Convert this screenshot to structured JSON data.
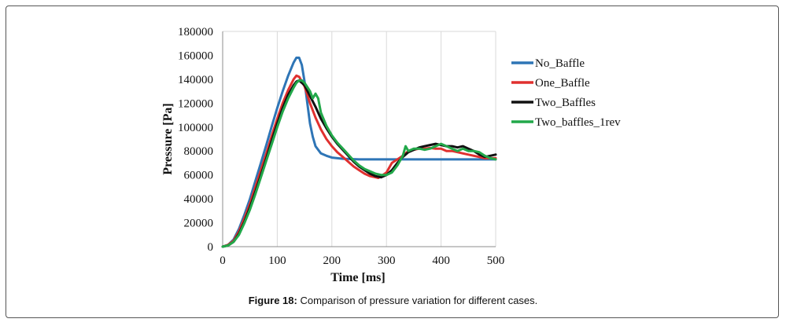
{
  "caption": {
    "label": "Figure 18:",
    "text": "Comparison of pressure variation for different cases."
  },
  "chart_data": {
    "type": "line",
    "title": "",
    "xlabel": "Time [ms]",
    "ylabel": "Pressure [Pa]",
    "xlim": [
      0,
      500
    ],
    "ylim": [
      0,
      180000
    ],
    "xticks": [
      0,
      100,
      200,
      300,
      400,
      500
    ],
    "yticks": [
      0,
      20000,
      40000,
      60000,
      80000,
      100000,
      120000,
      140000,
      160000,
      180000
    ],
    "grid": "vertical",
    "legend_position": "right",
    "series": [
      {
        "name": "No_Baffle",
        "color": "#2e75b6",
        "points": [
          [
            0,
            0
          ],
          [
            10,
            1500
          ],
          [
            20,
            6000
          ],
          [
            30,
            15000
          ],
          [
            40,
            27000
          ],
          [
            50,
            40000
          ],
          [
            60,
            55000
          ],
          [
            70,
            70000
          ],
          [
            80,
            85000
          ],
          [
            90,
            101000
          ],
          [
            100,
            116000
          ],
          [
            110,
            130000
          ],
          [
            120,
            143000
          ],
          [
            130,
            154000
          ],
          [
            135,
            158000
          ],
          [
            140,
            158000
          ],
          [
            145,
            152000
          ],
          [
            150,
            138000
          ],
          [
            155,
            120000
          ],
          [
            160,
            103000
          ],
          [
            165,
            92000
          ],
          [
            170,
            84000
          ],
          [
            180,
            78000
          ],
          [
            190,
            76000
          ],
          [
            200,
            74500
          ],
          [
            220,
            73500
          ],
          [
            250,
            73000
          ],
          [
            300,
            73000
          ],
          [
            350,
            73000
          ],
          [
            400,
            73000
          ],
          [
            450,
            73000
          ],
          [
            500,
            73000
          ]
        ]
      },
      {
        "name": "One_Baffle",
        "color": "#e0302f",
        "points": [
          [
            0,
            0
          ],
          [
            10,
            1500
          ],
          [
            20,
            5000
          ],
          [
            30,
            13000
          ],
          [
            40,
            24000
          ],
          [
            50,
            36000
          ],
          [
            60,
            50000
          ],
          [
            70,
            64000
          ],
          [
            80,
            78000
          ],
          [
            90,
            93000
          ],
          [
            100,
            107000
          ],
          [
            110,
            120000
          ],
          [
            120,
            131000
          ],
          [
            130,
            140000
          ],
          [
            135,
            143000
          ],
          [
            140,
            142000
          ],
          [
            150,
            134000
          ],
          [
            160,
            120000
          ],
          [
            170,
            108000
          ],
          [
            180,
            98000
          ],
          [
            190,
            90000
          ],
          [
            200,
            84000
          ],
          [
            210,
            79000
          ],
          [
            220,
            75000
          ],
          [
            230,
            71000
          ],
          [
            240,
            67000
          ],
          [
            250,
            64000
          ],
          [
            260,
            61000
          ],
          [
            270,
            59000
          ],
          [
            280,
            58000
          ],
          [
            285,
            57500
          ],
          [
            290,
            59000
          ],
          [
            300,
            62000
          ],
          [
            310,
            70000
          ],
          [
            320,
            73000
          ],
          [
            330,
            76000
          ],
          [
            340,
            80000
          ],
          [
            350,
            81000
          ],
          [
            360,
            82000
          ],
          [
            370,
            82000
          ],
          [
            380,
            82500
          ],
          [
            390,
            82000
          ],
          [
            400,
            82000
          ],
          [
            410,
            80000
          ],
          [
            420,
            80000
          ],
          [
            430,
            79000
          ],
          [
            440,
            78000
          ],
          [
            450,
            77000
          ],
          [
            460,
            76000
          ],
          [
            470,
            75000
          ],
          [
            480,
            74000
          ],
          [
            490,
            74000
          ],
          [
            500,
            74000
          ]
        ]
      },
      {
        "name": "Two_Baffles",
        "color": "#111111",
        "points": [
          [
            0,
            0
          ],
          [
            10,
            1000
          ],
          [
            20,
            4000
          ],
          [
            30,
            11000
          ],
          [
            40,
            21000
          ],
          [
            50,
            33000
          ],
          [
            60,
            46000
          ],
          [
            70,
            60000
          ],
          [
            80,
            74000
          ],
          [
            90,
            89000
          ],
          [
            100,
            103000
          ],
          [
            110,
            116000
          ],
          [
            120,
            127000
          ],
          [
            130,
            135000
          ],
          [
            135,
            138000
          ],
          [
            140,
            139000
          ],
          [
            150,
            135000
          ],
          [
            160,
            126000
          ],
          [
            170,
            117000
          ],
          [
            180,
            107000
          ],
          [
            190,
            99000
          ],
          [
            200,
            92000
          ],
          [
            210,
            86000
          ],
          [
            220,
            81000
          ],
          [
            230,
            76000
          ],
          [
            240,
            71000
          ],
          [
            250,
            67000
          ],
          [
            260,
            64000
          ],
          [
            270,
            61000
          ],
          [
            280,
            59000
          ],
          [
            290,
            58000
          ],
          [
            300,
            60000
          ],
          [
            310,
            64000
          ],
          [
            320,
            70000
          ],
          [
            330,
            75000
          ],
          [
            340,
            79000
          ],
          [
            350,
            81000
          ],
          [
            360,
            83000
          ],
          [
            370,
            84000
          ],
          [
            380,
            85000
          ],
          [
            390,
            86000
          ],
          [
            400,
            85000
          ],
          [
            410,
            84000
          ],
          [
            420,
            84000
          ],
          [
            430,
            83000
          ],
          [
            440,
            84000
          ],
          [
            450,
            82000
          ],
          [
            460,
            80000
          ],
          [
            470,
            77000
          ],
          [
            480,
            75000
          ],
          [
            490,
            76000
          ],
          [
            500,
            77000
          ]
        ]
      },
      {
        "name": "Two_baffles_1rev",
        "color": "#22a84a",
        "points": [
          [
            0,
            0
          ],
          [
            10,
            1000
          ],
          [
            20,
            4000
          ],
          [
            30,
            10000
          ],
          [
            40,
            20000
          ],
          [
            50,
            31000
          ],
          [
            60,
            44000
          ],
          [
            70,
            58000
          ],
          [
            80,
            72000
          ],
          [
            90,
            86000
          ],
          [
            100,
            100000
          ],
          [
            110,
            113000
          ],
          [
            120,
            124000
          ],
          [
            130,
            133000
          ],
          [
            135,
            137000
          ],
          [
            140,
            139000
          ],
          [
            145,
            139000
          ],
          [
            150,
            137000
          ],
          [
            160,
            130000
          ],
          [
            165,
            124000
          ],
          [
            170,
            128000
          ],
          [
            175,
            124000
          ],
          [
            180,
            112000
          ],
          [
            190,
            101000
          ],
          [
            200,
            93000
          ],
          [
            210,
            87000
          ],
          [
            220,
            82000
          ],
          [
            230,
            77000
          ],
          [
            240,
            72000
          ],
          [
            250,
            68000
          ],
          [
            260,
            65000
          ],
          [
            270,
            63000
          ],
          [
            280,
            61000
          ],
          [
            290,
            60000
          ],
          [
            300,
            60000
          ],
          [
            310,
            62000
          ],
          [
            320,
            68000
          ],
          [
            330,
            76000
          ],
          [
            335,
            84000
          ],
          [
            340,
            80000
          ],
          [
            350,
            82000
          ],
          [
            360,
            82000
          ],
          [
            370,
            81000
          ],
          [
            380,
            82000
          ],
          [
            390,
            84000
          ],
          [
            400,
            86000
          ],
          [
            410,
            84000
          ],
          [
            420,
            82000
          ],
          [
            430,
            80000
          ],
          [
            440,
            82000
          ],
          [
            450,
            80000
          ],
          [
            460,
            80000
          ],
          [
            470,
            79000
          ],
          [
            480,
            76000
          ],
          [
            490,
            74000
          ],
          [
            500,
            73000
          ]
        ]
      }
    ]
  }
}
